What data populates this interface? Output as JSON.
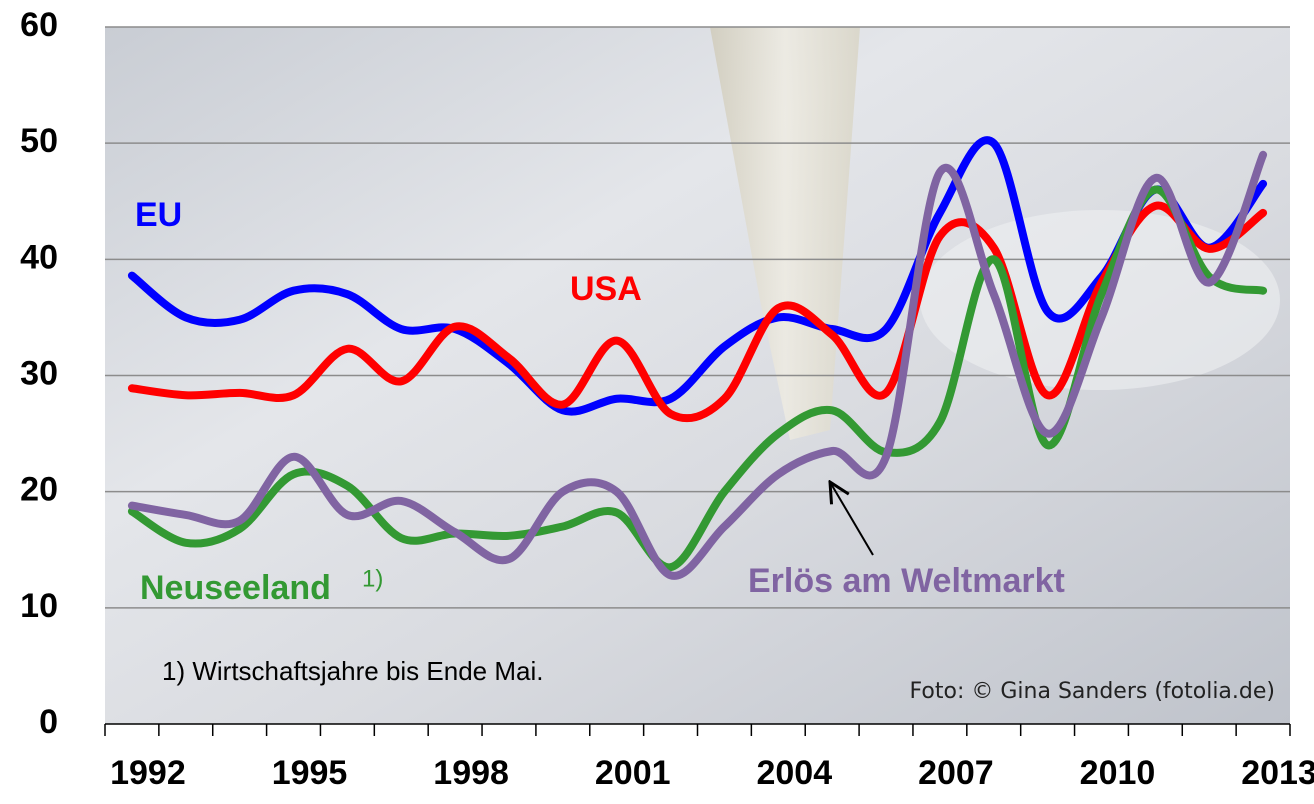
{
  "chart_data": {
    "type": "line",
    "categories": [
      "1992",
      null,
      null,
      "1995",
      null,
      null,
      "1998",
      null,
      null,
      "2001",
      null,
      null,
      "2004",
      null,
      null,
      "2007",
      null,
      null,
      "2010",
      null,
      null,
      "2013"
    ],
    "series": [
      {
        "name": "EU",
        "color": "#0000ff",
        "values": [
          38.6,
          35,
          34.8,
          37.3,
          37,
          34,
          34,
          31,
          27,
          28,
          28,
          32.5,
          35,
          34,
          34,
          44,
          50,
          35.5,
          38.5,
          46,
          41,
          46.5
        ]
      },
      {
        "name": "USA",
        "color": "#ff0000",
        "values": [
          28.9,
          28.3,
          28.5,
          28.3,
          32.3,
          29.5,
          34.2,
          31.5,
          27.5,
          33,
          26.7,
          28,
          35.8,
          33.5,
          28.5,
          42,
          41,
          28.3,
          38,
          44.6,
          40.9,
          44
        ]
      },
      {
        "name": "Neuseeland",
        "color": "#339933",
        "values": [
          18.3,
          15.6,
          16.8,
          21.5,
          20.5,
          16,
          16.4,
          16.2,
          17,
          18.2,
          13.5,
          20,
          25,
          27,
          23.4,
          26,
          40,
          24,
          37,
          46,
          38.5,
          37.3
        ]
      },
      {
        "name": "Erlös am Weltmarkt",
        "color": "#8064a2",
        "values": [
          18.8,
          18,
          17.5,
          23,
          18,
          19.2,
          16.5,
          14.2,
          20,
          20,
          12.8,
          17,
          21.5,
          23.5,
          23,
          47.5,
          37,
          25,
          35,
          47,
          38,
          49
        ]
      }
    ],
    "footnote_marker": "1)",
    "footnote": "1) Wirtschaftsjahre bis Ende Mai.",
    "credit": "Foto: © Gina Sanders (fotolia.de)",
    "ylim": [
      0,
      60
    ],
    "yticks": [
      0,
      10,
      20,
      30,
      40,
      50,
      60
    ],
    "grid": true
  }
}
